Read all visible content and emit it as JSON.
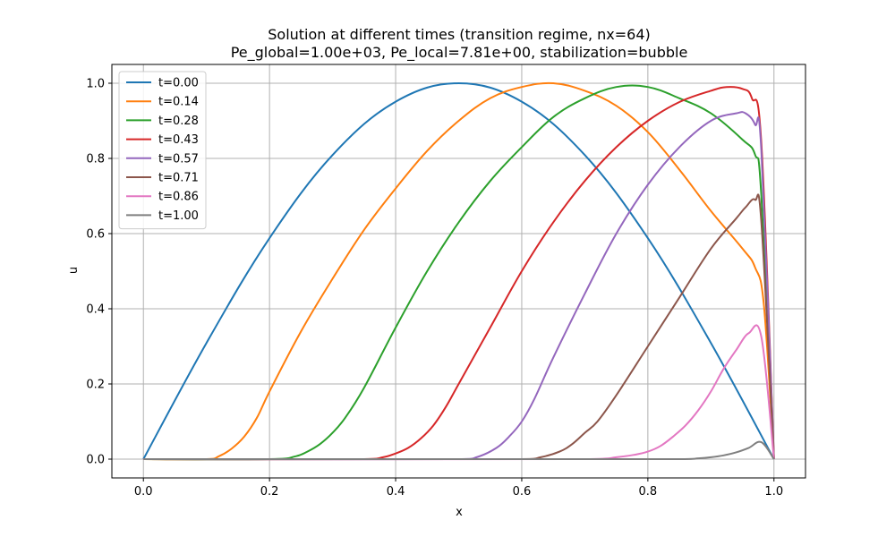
{
  "chart_data": {
    "type": "line",
    "title": "Solution at different times (transition regime, nx=64)",
    "subtitle": "Pe_global=1.00e+03, Pe_local=7.81e+00, stabilization=bubble",
    "xlabel": "x",
    "ylabel": "u",
    "xlim": [
      -0.05,
      1.05
    ],
    "ylim": [
      -0.05,
      1.05
    ],
    "xticks": [
      0.0,
      0.2,
      0.4,
      0.6,
      0.8,
      1.0
    ],
    "xtick_labels": [
      "0.0",
      "0.2",
      "0.4",
      "0.6",
      "0.8",
      "1.0"
    ],
    "yticks": [
      0.0,
      0.2,
      0.4,
      0.6,
      0.8,
      1.0
    ],
    "ytick_labels": [
      "0.0",
      "0.2",
      "0.4",
      "0.6",
      "0.8",
      "1.0"
    ],
    "grid": true,
    "legend_position": "top-left",
    "series": [
      {
        "name": "t=0.00",
        "color": "#1f77b4",
        "x": [
          0.0,
          0.1,
          0.2,
          0.3,
          0.4,
          0.5,
          0.6,
          0.7,
          0.8,
          0.9,
          1.0
        ],
        "y": [
          0.0,
          0.309,
          0.588,
          0.809,
          0.951,
          1.0,
          0.951,
          0.809,
          0.588,
          0.309,
          0.0
        ]
      },
      {
        "name": "t=0.14",
        "color": "#ff7f0e",
        "x": [
          0.0,
          0.1,
          0.12,
          0.14,
          0.16,
          0.18,
          0.2,
          0.25,
          0.3,
          0.35,
          0.4,
          0.45,
          0.5,
          0.55,
          0.6,
          0.65,
          0.7,
          0.75,
          0.8,
          0.85,
          0.9,
          0.95,
          0.97,
          0.984,
          1.0
        ],
        "y": [
          0.0,
          0.0,
          0.008,
          0.028,
          0.06,
          0.11,
          0.18,
          0.34,
          0.48,
          0.61,
          0.72,
          0.82,
          0.9,
          0.96,
          0.99,
          1.0,
          0.98,
          0.94,
          0.87,
          0.77,
          0.66,
          0.56,
          0.51,
          0.41,
          0.0
        ]
      },
      {
        "name": "t=0.28",
        "color": "#2ca02c",
        "x": [
          0.0,
          0.2,
          0.24,
          0.26,
          0.28,
          0.3,
          0.32,
          0.35,
          0.4,
          0.45,
          0.5,
          0.55,
          0.6,
          0.65,
          0.7,
          0.75,
          0.8,
          0.85,
          0.9,
          0.95,
          0.97,
          0.98,
          1.0
        ],
        "y": [
          0.0,
          0.0,
          0.007,
          0.02,
          0.04,
          0.07,
          0.11,
          0.19,
          0.35,
          0.5,
          0.63,
          0.74,
          0.83,
          0.91,
          0.96,
          0.99,
          0.99,
          0.96,
          0.92,
          0.85,
          0.81,
          0.7,
          0.0
        ]
      },
      {
        "name": "t=0.43",
        "color": "#d62728",
        "x": [
          0.0,
          0.35,
          0.38,
          0.4,
          0.42,
          0.44,
          0.46,
          0.48,
          0.5,
          0.55,
          0.6,
          0.65,
          0.7,
          0.75,
          0.8,
          0.85,
          0.9,
          0.925,
          0.95,
          0.965,
          0.98,
          1.0
        ],
        "y": [
          0.0,
          0.0,
          0.005,
          0.015,
          0.03,
          0.055,
          0.09,
          0.14,
          0.2,
          0.35,
          0.5,
          0.63,
          0.74,
          0.83,
          0.9,
          0.95,
          0.98,
          0.99,
          0.985,
          0.96,
          0.84,
          0.0
        ]
      },
      {
        "name": "t=0.57",
        "color": "#9467bd",
        "x": [
          0.0,
          0.5,
          0.53,
          0.56,
          0.58,
          0.6,
          0.62,
          0.65,
          0.7,
          0.75,
          0.8,
          0.85,
          0.9,
          0.94,
          0.955,
          0.97,
          0.98,
          1.0
        ],
        "y": [
          0.0,
          0.0,
          0.006,
          0.03,
          0.06,
          0.1,
          0.16,
          0.27,
          0.44,
          0.6,
          0.73,
          0.83,
          0.9,
          0.92,
          0.92,
          0.89,
          0.82,
          0.0
        ]
      },
      {
        "name": "t=0.71",
        "color": "#8c564b",
        "x": [
          0.0,
          0.6,
          0.63,
          0.66,
          0.68,
          0.7,
          0.72,
          0.75,
          0.8,
          0.85,
          0.9,
          0.94,
          0.955,
          0.97,
          0.98,
          1.0
        ],
        "y": [
          0.0,
          0.0,
          0.005,
          0.02,
          0.04,
          0.07,
          0.1,
          0.17,
          0.3,
          0.43,
          0.56,
          0.64,
          0.67,
          0.69,
          0.63,
          0.0
        ]
      },
      {
        "name": "t=0.86",
        "color": "#e377c2",
        "x": [
          0.0,
          0.7,
          0.75,
          0.78,
          0.8,
          0.82,
          0.84,
          0.86,
          0.88,
          0.9,
          0.92,
          0.94,
          0.96,
          0.98,
          1.0
        ],
        "y": [
          0.0,
          0.0,
          0.005,
          0.012,
          0.02,
          0.035,
          0.06,
          0.09,
          0.13,
          0.18,
          0.24,
          0.29,
          0.335,
          0.325,
          0.0
        ]
      },
      {
        "name": "t=1.00",
        "color": "#7f7f7f",
        "x": [
          0.0,
          0.85,
          0.88,
          0.9,
          0.92,
          0.94,
          0.96,
          0.98,
          1.0
        ],
        "y": [
          0.0,
          0.0,
          0.002,
          0.005,
          0.01,
          0.018,
          0.03,
          0.045,
          0.0
        ]
      }
    ]
  }
}
